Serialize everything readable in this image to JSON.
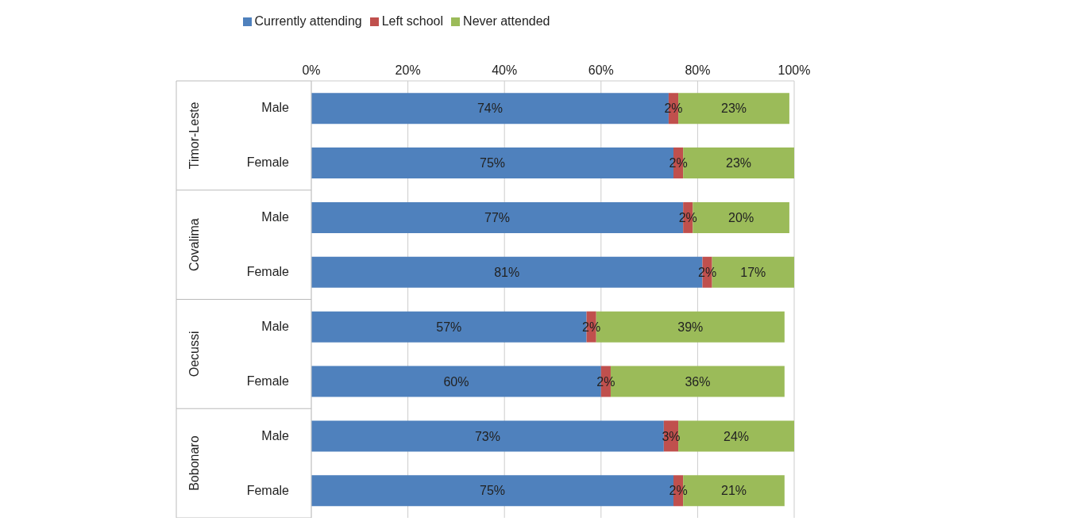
{
  "chart_data": {
    "type": "bar",
    "orientation": "horizontal",
    "stacked": true,
    "categories": [
      "Male",
      "Female",
      "Male",
      "Female",
      "Male",
      "Female",
      "Male",
      "Female"
    ],
    "annotations": [
      "Timor-Leste",
      "Covalima",
      "Oecussi",
      "Bobonaro"
    ],
    "series": [
      {
        "name": "Currently attending",
        "color": "#4f81bd",
        "values": [
          74,
          75,
          77,
          81,
          57,
          60,
          73,
          75
        ],
        "value_labels": [
          "74%",
          "75%",
          "77%",
          "81%",
          "57%",
          "60%",
          "73%",
          "75%"
        ]
      },
      {
        "name": "Left school",
        "color": "#c0504d",
        "values": [
          2,
          2,
          2,
          2,
          2,
          2,
          3,
          2
        ],
        "value_labels": [
          "2%",
          "2%",
          "2%",
          "2%",
          "2%",
          "2%",
          "3%",
          "2%"
        ]
      },
      {
        "name": "Never attended",
        "color": "#9bbb59",
        "values": [
          23,
          23,
          20,
          17,
          39,
          36,
          24,
          21
        ],
        "value_labels": [
          "23%",
          "23%",
          "20%",
          "17%",
          "39%",
          "36%",
          "24%",
          "21%"
        ]
      }
    ],
    "xlim": [
      0,
      100
    ],
    "xticks": [
      {
        "value": 0,
        "label": "0%"
      },
      {
        "value": 20,
        "label": "20%"
      },
      {
        "value": 40,
        "label": "40%"
      },
      {
        "value": 60,
        "label": "60%"
      },
      {
        "value": 80,
        "label": "80%"
      },
      {
        "value": 100,
        "label": "100%"
      }
    ],
    "grid": "x",
    "legend": "top"
  }
}
